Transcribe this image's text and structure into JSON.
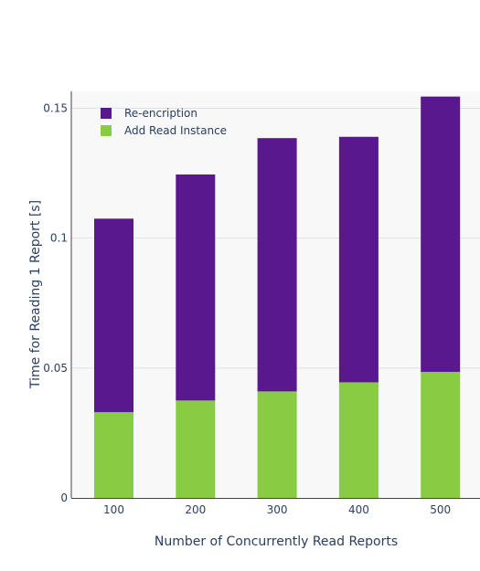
{
  "chart_data": {
    "type": "bar",
    "stacked": true,
    "categories": [
      "100",
      "200",
      "300",
      "400",
      "500"
    ],
    "series": [
      {
        "name": "Add Read Instance",
        "color": "#88cc44",
        "values": [
          0.033,
          0.0375,
          0.041,
          0.0445,
          0.0485
        ]
      },
      {
        "name": "Re-encription",
        "color": "#5a188f",
        "values": [
          0.0745,
          0.087,
          0.0975,
          0.0945,
          0.106
        ]
      }
    ],
    "legend_order": [
      "Re-encription",
      "Add Read Instance"
    ],
    "xlabel": "Number of Concurrently Read Reports",
    "ylabel": "Time for Reading 1 Report [s]",
    "ylim": [
      0,
      0.1565
    ],
    "yticks": [
      0,
      0.05,
      0.1,
      0.15
    ],
    "ytick_labels": [
      "0",
      "0.05",
      "0.1",
      "0.15"
    ],
    "grid": true,
    "legend_position": "top-left",
    "plot_background": "#f8f8f8",
    "grid_color": "#e1e1e1"
  }
}
